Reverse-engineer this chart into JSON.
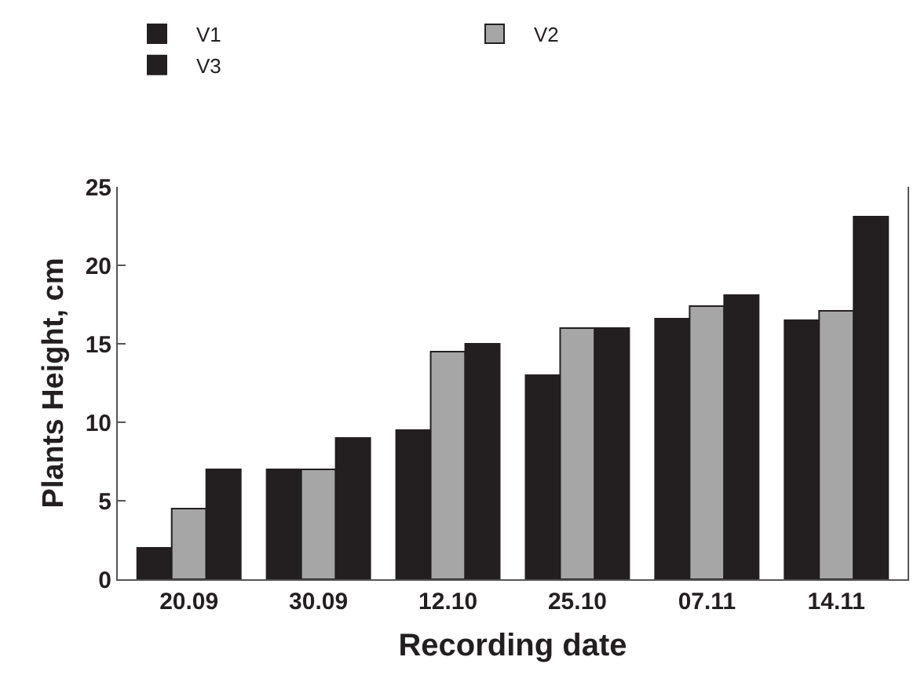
{
  "chart_data": {
    "type": "bar",
    "xlabel": "Recording date",
    "ylabel": "Plants Height, cm",
    "categories": [
      "20.09",
      "30.09",
      "12.10",
      "25.10",
      "07.11",
      "14.11"
    ],
    "series": [
      {
        "name": "V1",
        "color": "#231f20",
        "values": [
          2,
          7,
          9.5,
          13,
          16.6,
          16.5
        ]
      },
      {
        "name": "V2",
        "color": "#a6a6a6",
        "values": [
          4.5,
          7,
          14.5,
          16,
          17.4,
          17.1
        ]
      },
      {
        "name": "V3",
        "color": "#231f20",
        "values": [
          7,
          9,
          15,
          16,
          18.1,
          23.1
        ]
      }
    ],
    "ylim": [
      0,
      25
    ],
    "yticks": [
      0,
      5,
      10,
      15,
      20,
      25
    ],
    "grid": false,
    "legend": "top left"
  }
}
